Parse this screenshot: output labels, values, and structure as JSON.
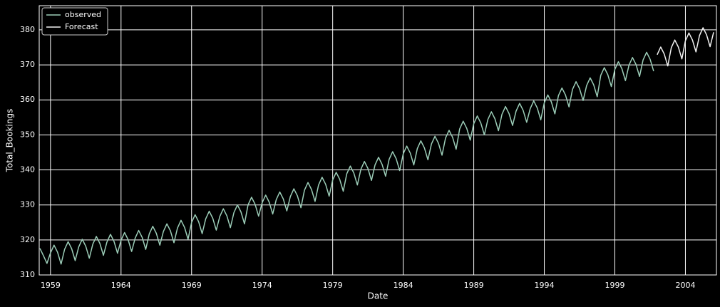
{
  "chart_data": {
    "type": "line",
    "xlabel": "Date",
    "ylabel": "Total_Bookings",
    "xlim": [
      1958.2,
      2006.2
    ],
    "ylim": [
      310,
      386.9
    ],
    "xticks": [
      1959,
      1964,
      1969,
      1974,
      1979,
      1984,
      1989,
      1994,
      1999,
      2004
    ],
    "yticks": [
      310,
      320,
      330,
      340,
      350,
      360,
      370,
      380
    ],
    "grid": true,
    "legend": "upper left",
    "series": [
      {
        "name": "observed",
        "color": "#9ccdb8",
        "x": [
          1958.25,
          1958.5,
          1958.75,
          1959,
          1959.25,
          1959.5,
          1959.75,
          1960,
          1960.25,
          1960.5,
          1960.75,
          1961,
          1961.25,
          1961.5,
          1961.75,
          1962,
          1962.25,
          1962.5,
          1962.75,
          1963,
          1963.25,
          1963.5,
          1963.75,
          1964,
          1964.25,
          1964.5,
          1964.75,
          1965,
          1965.25,
          1965.5,
          1965.75,
          1966,
          1966.25,
          1966.5,
          1966.75,
          1967,
          1967.25,
          1967.5,
          1967.75,
          1968,
          1968.25,
          1968.5,
          1968.75,
          1969,
          1969.25,
          1969.5,
          1969.75,
          1970,
          1970.25,
          1970.5,
          1970.75,
          1971,
          1971.25,
          1971.5,
          1971.75,
          1972,
          1972.25,
          1972.5,
          1972.75,
          1973,
          1973.25,
          1973.5,
          1973.75,
          1974,
          1974.25,
          1974.5,
          1974.75,
          1975,
          1975.25,
          1975.5,
          1975.75,
          1976,
          1976.25,
          1976.5,
          1976.75,
          1977,
          1977.25,
          1977.5,
          1977.75,
          1978,
          1978.25,
          1978.5,
          1978.75,
          1979,
          1979.25,
          1979.5,
          1979.75,
          1980,
          1980.25,
          1980.5,
          1980.75,
          1981,
          1981.25,
          1981.5,
          1981.75,
          1982,
          1982.25,
          1982.5,
          1982.75,
          1983,
          1983.25,
          1983.5,
          1983.75,
          1984,
          1984.25,
          1984.5,
          1984.75,
          1985,
          1985.25,
          1985.5,
          1985.75,
          1986,
          1986.25,
          1986.5,
          1986.75,
          1987,
          1987.25,
          1987.5,
          1987.75,
          1988,
          1988.25,
          1988.5,
          1988.75,
          1989,
          1989.25,
          1989.5,
          1989.75,
          1990,
          1990.25,
          1990.5,
          1990.75,
          1991,
          1991.25,
          1991.5,
          1991.75,
          1992,
          1992.25,
          1992.5,
          1992.75,
          1993,
          1993.25,
          1993.5,
          1993.75,
          1994,
          1994.25,
          1994.5,
          1994.75,
          1995,
          1995.25,
          1995.5,
          1995.75,
          1996,
          1996.25,
          1996.5,
          1996.75,
          1997,
          1997.25,
          1997.5,
          1997.75,
          1998,
          1998.25,
          1998.5,
          1998.75,
          1999,
          1999.25,
          1999.5,
          1999.75,
          2000,
          2000.25,
          2000.5,
          2000.75,
          2001,
          2001.25,
          2001.5,
          2001.75
        ],
        "values": [
          317.6,
          315.5,
          313.3,
          316.3,
          318.5,
          316.5,
          313.1,
          317.3,
          319.5,
          317.5,
          314.1,
          318.0,
          320.2,
          318.2,
          314.8,
          318.8,
          321.0,
          319.0,
          315.6,
          319.4,
          321.6,
          319.6,
          316.2,
          319.9,
          322.1,
          320.1,
          316.7,
          320.5,
          322.7,
          320.7,
          317.3,
          321.7,
          323.9,
          321.9,
          318.5,
          322.4,
          324.6,
          322.6,
          319.2,
          323.4,
          325.6,
          323.6,
          320.2,
          325.0,
          327.2,
          325.2,
          321.8,
          326.0,
          328.2,
          326.2,
          322.8,
          326.7,
          328.9,
          326.9,
          323.5,
          327.8,
          330.0,
          328.0,
          324.6,
          330.0,
          332.2,
          330.2,
          326.8,
          330.6,
          332.8,
          330.8,
          327.4,
          331.5,
          333.7,
          331.7,
          328.3,
          332.4,
          334.6,
          332.6,
          329.2,
          334.2,
          336.4,
          334.4,
          331.0,
          335.7,
          337.9,
          335.9,
          332.5,
          337.1,
          339.3,
          337.3,
          333.9,
          338.9,
          341.1,
          339.1,
          335.7,
          340.2,
          342.4,
          340.4,
          337.0,
          341.4,
          343.6,
          341.6,
          338.2,
          343.0,
          345.2,
          343.2,
          339.8,
          344.6,
          346.8,
          344.8,
          341.4,
          346.1,
          348.3,
          346.3,
          342.9,
          347.4,
          349.6,
          347.6,
          344.2,
          349.1,
          351.3,
          349.3,
          345.9,
          351.7,
          353.9,
          351.9,
          348.5,
          353.2,
          355.4,
          353.4,
          350.0,
          354.4,
          356.6,
          354.6,
          351.2,
          355.9,
          358.1,
          356.1,
          352.7,
          356.8,
          359.0,
          357.0,
          353.6,
          357.5,
          359.7,
          357.7,
          354.3,
          359.2,
          361.4,
          359.4,
          356.0,
          361.2,
          363.4,
          361.4,
          358.0,
          363.0,
          365.2,
          363.2,
          359.8,
          364.1,
          366.3,
          364.3,
          360.9,
          367.0,
          369.2,
          367.2,
          363.8,
          368.7,
          370.9,
          368.9,
          365.5,
          369.9,
          372.1,
          370.1,
          366.7,
          371.4,
          373.6,
          371.6,
          368.2
        ]
      },
      {
        "name": "Forecast",
        "color": "#f2f2f2",
        "x": [
          2002,
          2002.25,
          2002.5,
          2002.75,
          2003,
          2003.25,
          2003.5,
          2003.75,
          2004,
          2004.25,
          2004.5,
          2004.75,
          2005,
          2005.25,
          2005.5,
          2005.75,
          2006
        ],
        "values": [
          372.9,
          375.1,
          373.1,
          369.7,
          374.9,
          377.1,
          375.1,
          371.7,
          376.9,
          379.1,
          377.1,
          373.7,
          378.4,
          380.6,
          378.6,
          375.2,
          379.3
        ]
      }
    ]
  }
}
